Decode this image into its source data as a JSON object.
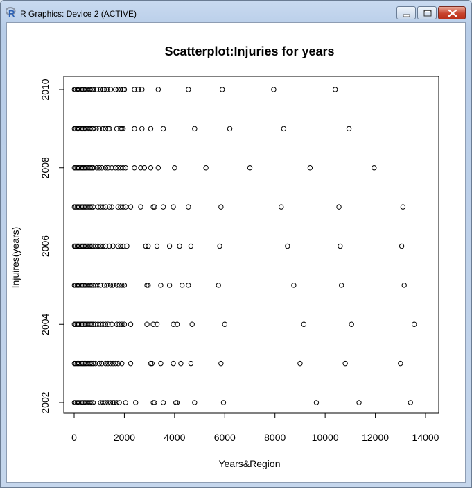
{
  "window": {
    "title": "R Graphics: Device 2 (ACTIVE)",
    "icon": "r-logo-icon",
    "controls": [
      "minimize-icon",
      "maximize-icon",
      "close-icon"
    ]
  },
  "chart_data": {
    "type": "scatter",
    "title": "Scatterplot:Injuries for years",
    "xlabel": "Years&Region",
    "ylabel": "Injuires(years)",
    "xlim": [
      0,
      14000
    ],
    "ylim": [
      2002,
      2010
    ],
    "x_ticks": [
      "0",
      "2000",
      "4000",
      "6000",
      "8000",
      "10000",
      "12000",
      "14000"
    ],
    "y_ticks": [
      "2002",
      "2004",
      "2006",
      "2008",
      "2010"
    ],
    "marker": "open-circle",
    "grid": false,
    "points_by_year": [
      {
        "year": 2010,
        "x": [
          10,
          60,
          120,
          180,
          240,
          300,
          350,
          400,
          460,
          520,
          580,
          640,
          700,
          760,
          900,
          1050,
          1150,
          1200,
          1300,
          1450,
          1650,
          1750,
          1850,
          1950,
          2000,
          2400,
          2550,
          2700,
          3350,
          4550,
          5900,
          7950,
          10400
        ]
      },
      {
        "year": 2009,
        "x": [
          10,
          60,
          120,
          180,
          240,
          300,
          350,
          400,
          460,
          520,
          580,
          640,
          700,
          760,
          880,
          1000,
          1150,
          1250,
          1350,
          1400,
          1700,
          1850,
          1900,
          1950,
          2400,
          2700,
          3050,
          3550,
          4800,
          6200,
          8350,
          10950
        ]
      },
      {
        "year": 2008,
        "x": [
          10,
          60,
          120,
          180,
          240,
          300,
          350,
          400,
          460,
          520,
          580,
          640,
          700,
          760,
          900,
          1000,
          1100,
          1250,
          1350,
          1500,
          1650,
          1750,
          1850,
          1950,
          2050,
          2400,
          2650,
          2800,
          3050,
          3350,
          4000,
          5250,
          7000,
          9400,
          11950
        ]
      },
      {
        "year": 2007,
        "x": [
          10,
          60,
          120,
          180,
          240,
          300,
          350,
          400,
          460,
          520,
          580,
          640,
          700,
          760,
          950,
          1050,
          1150,
          1250,
          1400,
          1500,
          1750,
          1850,
          1950,
          2050,
          2250,
          2650,
          3150,
          3200,
          3550,
          3950,
          4550,
          5850,
          8250,
          10550,
          13100
        ]
      },
      {
        "year": 2006,
        "x": [
          10,
          60,
          120,
          180,
          240,
          300,
          350,
          400,
          460,
          520,
          580,
          640,
          700,
          760,
          850,
          950,
          1050,
          1150,
          1250,
          1400,
          1550,
          1750,
          1850,
          1950,
          2100,
          2850,
          2950,
          3300,
          3800,
          4200,
          4650,
          5800,
          8500,
          10600,
          13050
        ]
      },
      {
        "year": 2005,
        "x": [
          10,
          60,
          120,
          180,
          240,
          300,
          350,
          400,
          460,
          520,
          580,
          640,
          700,
          760,
          850,
          950,
          1050,
          1200,
          1300,
          1450,
          1550,
          1700,
          1800,
          1900,
          2000,
          2900,
          2950,
          3450,
          3800,
          4300,
          4550,
          5750,
          8750,
          10650,
          13150
        ]
      },
      {
        "year": 2004,
        "x": [
          10,
          60,
          120,
          180,
          240,
          300,
          350,
          400,
          460,
          520,
          580,
          640,
          700,
          760,
          850,
          950,
          1050,
          1150,
          1250,
          1350,
          1500,
          1700,
          1800,
          1900,
          2000,
          2250,
          2900,
          3150,
          3300,
          3950,
          4100,
          4700,
          6000,
          9150,
          11050,
          13550
        ]
      },
      {
        "year": 2003,
        "x": [
          10,
          60,
          120,
          180,
          240,
          300,
          350,
          400,
          460,
          520,
          580,
          640,
          700,
          760,
          850,
          1000,
          1100,
          1250,
          1350,
          1450,
          1550,
          1650,
          1750,
          1900,
          2250,
          3050,
          3100,
          3450,
          3950,
          4250,
          4650,
          5850,
          9000,
          10800,
          13000
        ]
      },
      {
        "year": 2002,
        "x": [
          10,
          60,
          120,
          180,
          240,
          300,
          350,
          400,
          460,
          520,
          580,
          640,
          700,
          760,
          1050,
          1150,
          1250,
          1350,
          1450,
          1550,
          1600,
          1700,
          1800,
          2050,
          2450,
          3150,
          3200,
          3550,
          4050,
          4100,
          4800,
          5950,
          9650,
          11350,
          13400
        ]
      }
    ]
  }
}
